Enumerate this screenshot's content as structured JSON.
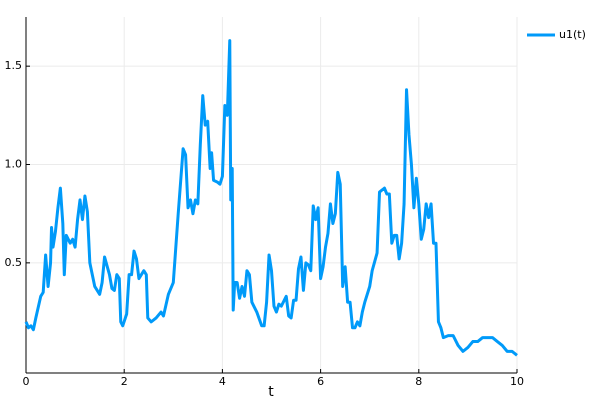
{
  "chart_data": {
    "type": "line",
    "xlabel": "t",
    "x": [
      0,
      0.05,
      0.1,
      0.15,
      0.2,
      0.3,
      0.35,
      0.4,
      0.45,
      0.5,
      0.52,
      0.55,
      0.6,
      0.65,
      0.7,
      0.75,
      0.78,
      0.82,
      0.9,
      0.95,
      1.0,
      1.05,
      1.1,
      1.15,
      1.2,
      1.25,
      1.3,
      1.4,
      1.5,
      1.55,
      1.6,
      1.7,
      1.75,
      1.8,
      1.85,
      1.9,
      1.93,
      1.97,
      2.05,
      2.1,
      2.15,
      2.2,
      2.25,
      2.3,
      2.4,
      2.45,
      2.48,
      2.55,
      2.65,
      2.75,
      2.8,
      2.9,
      3.0,
      3.1,
      3.2,
      3.25,
      3.3,
      3.35,
      3.4,
      3.45,
      3.5,
      3.55,
      3.6,
      3.65,
      3.7,
      3.75,
      3.78,
      3.82,
      3.9,
      3.95,
      4.0,
      4.05,
      4.1,
      4.15,
      4.17,
      4.2,
      4.22,
      4.25,
      4.3,
      4.35,
      4.4,
      4.45,
      4.5,
      4.55,
      4.6,
      4.7,
      4.8,
      4.85,
      4.9,
      4.95,
      5.0,
      5.05,
      5.1,
      5.15,
      5.2,
      5.3,
      5.35,
      5.4,
      5.45,
      5.5,
      5.55,
      5.6,
      5.65,
      5.7,
      5.75,
      5.8,
      5.85,
      5.9,
      5.95,
      6.0,
      6.05,
      6.1,
      6.15,
      6.2,
      6.25,
      6.3,
      6.35,
      6.4,
      6.45,
      6.5,
      6.55,
      6.6,
      6.65,
      6.7,
      6.75,
      6.8,
      6.85,
      6.9,
      7.0,
      7.05,
      7.15,
      7.2,
      7.3,
      7.35,
      7.4,
      7.45,
      7.5,
      7.55,
      7.6,
      7.65,
      7.7,
      7.75,
      7.8,
      7.85,
      7.9,
      7.95,
      8.0,
      8.05,
      8.1,
      8.15,
      8.2,
      8.25,
      8.3,
      8.35,
      8.4,
      8.45,
      8.5,
      8.6,
      8.7,
      8.8,
      8.9,
      9.0,
      9.1,
      9.2,
      9.3,
      9.5,
      9.6,
      9.7,
      9.8,
      9.9,
      10.0
    ],
    "series": [
      {
        "name": "u1(t)",
        "color": "#009af9",
        "values": [
          0.2,
          0.17,
          0.18,
          0.16,
          0.22,
          0.33,
          0.35,
          0.54,
          0.38,
          0.5,
          0.68,
          0.58,
          0.66,
          0.78,
          0.88,
          0.7,
          0.44,
          0.64,
          0.6,
          0.62,
          0.58,
          0.72,
          0.82,
          0.72,
          0.84,
          0.76,
          0.5,
          0.38,
          0.34,
          0.4,
          0.53,
          0.44,
          0.37,
          0.36,
          0.44,
          0.42,
          0.2,
          0.18,
          0.24,
          0.44,
          0.44,
          0.56,
          0.52,
          0.42,
          0.46,
          0.44,
          0.22,
          0.2,
          0.22,
          0.25,
          0.23,
          0.34,
          0.4,
          0.75,
          1.08,
          1.05,
          0.78,
          0.82,
          0.75,
          0.82,
          0.8,
          1.1,
          1.35,
          1.2,
          1.22,
          0.98,
          1.06,
          0.92,
          0.91,
          0.9,
          0.94,
          1.3,
          1.25,
          1.63,
          0.82,
          0.98,
          0.26,
          0.4,
          0.4,
          0.32,
          0.38,
          0.33,
          0.46,
          0.44,
          0.3,
          0.25,
          0.18,
          0.18,
          0.3,
          0.54,
          0.46,
          0.28,
          0.25,
          0.29,
          0.28,
          0.33,
          0.23,
          0.22,
          0.31,
          0.31,
          0.47,
          0.53,
          0.36,
          0.5,
          0.49,
          0.46,
          0.79,
          0.72,
          0.78,
          0.42,
          0.48,
          0.58,
          0.65,
          0.8,
          0.7,
          0.75,
          0.96,
          0.9,
          0.38,
          0.48,
          0.3,
          0.3,
          0.17,
          0.17,
          0.2,
          0.18,
          0.25,
          0.3,
          0.38,
          0.46,
          0.55,
          0.86,
          0.88,
          0.85,
          0.85,
          0.6,
          0.64,
          0.64,
          0.52,
          0.6,
          0.8,
          1.38,
          1.15,
          1.0,
          0.78,
          0.93,
          0.8,
          0.62,
          0.67,
          0.8,
          0.73,
          0.8,
          0.6,
          0.6,
          0.2,
          0.17,
          0.12,
          0.13,
          0.13,
          0.08,
          0.05,
          0.07,
          0.1,
          0.1,
          0.12,
          0.12,
          0.1,
          0.08,
          0.05,
          0.05,
          0.03
        ]
      }
    ],
    "xlim": [
      0,
      10
    ],
    "xticks": [
      0,
      2,
      4,
      6,
      8,
      10
    ],
    "ylim": [
      -0.06,
      1.75
    ],
    "yticks": [
      0.5,
      {
        "value": 1,
        "label": "1.0"
      },
      1.5
    ],
    "grid": true,
    "legend": "top-right"
  }
}
